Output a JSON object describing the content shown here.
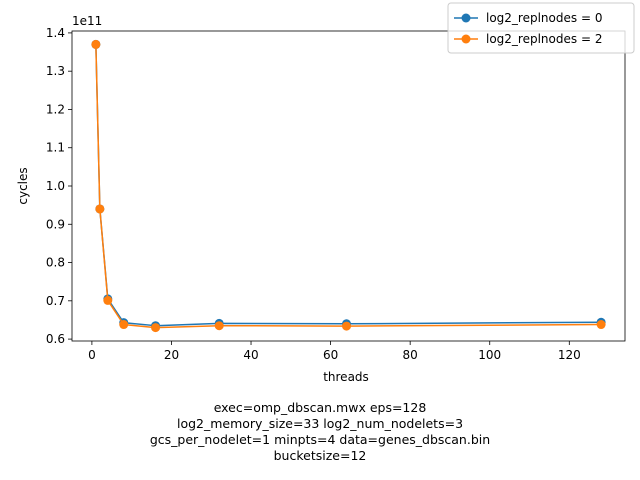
{
  "chart_data": {
    "type": "line",
    "xlabel": "threads",
    "ylabel": "cycles",
    "y_offset_label": "1e11",
    "xlim": [
      -5,
      134
    ],
    "ylim": [
      0.595,
      1.405
    ],
    "x_ticks": [
      0,
      20,
      40,
      60,
      80,
      100,
      120
    ],
    "y_ticks": [
      0.6,
      0.7,
      0.8,
      0.9,
      1.0,
      1.1,
      1.2,
      1.3,
      1.4
    ],
    "x_tick_labels": [
      "0",
      "20",
      "40",
      "60",
      "80",
      "100",
      "120"
    ],
    "y_tick_labels": [
      "0.6",
      "0.7",
      "0.8",
      "0.9",
      "1.0",
      "1.1",
      "1.2",
      "1.3",
      "1.4"
    ],
    "grid": false,
    "legend_position": "top-right",
    "x": [
      1,
      2,
      4,
      8,
      16,
      32,
      64,
      128
    ],
    "series": [
      {
        "name": "log2_replnodes = 0",
        "color": "#1f77b4",
        "values": [
          1.37,
          0.94,
          0.705,
          0.643,
          0.635,
          0.641,
          0.64,
          0.644
        ]
      },
      {
        "name": "log2_replnodes = 2",
        "color": "#ff7f0e",
        "values": [
          1.37,
          0.94,
          0.701,
          0.638,
          0.63,
          0.635,
          0.634,
          0.638
        ]
      }
    ]
  },
  "caption": {
    "line1": "exec=omp_dbscan.mwx   eps=128",
    "line2": "log2_memory_size=33   log2_num_nodelets=3",
    "line3": "gcs_per_nodelet=1   minpts=4   data=genes_dbscan.bin",
    "line4": "bucketsize=12"
  }
}
